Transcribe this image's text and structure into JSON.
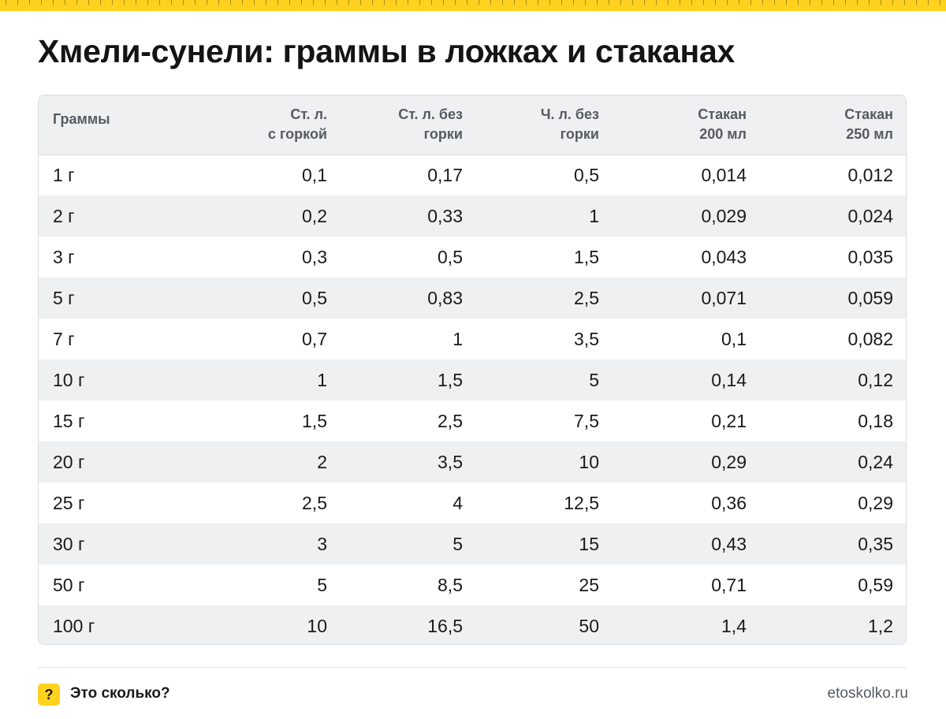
{
  "page": {
    "title": "Хмели-сунели: граммы в ложках и стаканах"
  },
  "table": {
    "headers": [
      [
        "Граммы"
      ],
      [
        "Ст. л.",
        "с горкой"
      ],
      [
        "Ст. л. без",
        "горки"
      ],
      [
        "Ч. л. без",
        "горки"
      ],
      [
        "Стакан",
        "200 мл"
      ],
      [
        "Стакан",
        "250 мл"
      ]
    ],
    "rows": [
      [
        "1 г",
        "0,1",
        "0,17",
        "0,5",
        "0,014",
        "0,012"
      ],
      [
        "2 г",
        "0,2",
        "0,33",
        "1",
        "0,029",
        "0,024"
      ],
      [
        "3 г",
        "0,3",
        "0,5",
        "1,5",
        "0,043",
        "0,035"
      ],
      [
        "5 г",
        "0,5",
        "0,83",
        "2,5",
        "0,071",
        "0,059"
      ],
      [
        "7 г",
        "0,7",
        "1",
        "3,5",
        "0,1",
        "0,082"
      ],
      [
        "10 г",
        "1",
        "1,5",
        "5",
        "0,14",
        "0,12"
      ],
      [
        "15 г",
        "1,5",
        "2,5",
        "7,5",
        "0,21",
        "0,18"
      ],
      [
        "20 г",
        "2",
        "3,5",
        "10",
        "0,29",
        "0,24"
      ],
      [
        "25 г",
        "2,5",
        "4",
        "12,5",
        "0,36",
        "0,29"
      ],
      [
        "30 г",
        "3",
        "5",
        "15",
        "0,43",
        "0,35"
      ],
      [
        "50 г",
        "5",
        "8,5",
        "25",
        "0,71",
        "0,59"
      ],
      [
        "100 г",
        "10",
        "16,5",
        "50",
        "1,4",
        "1,2"
      ]
    ]
  },
  "footer": {
    "badge_glyph": "?",
    "brand": "Это сколько?",
    "site": "etoskolko.ru"
  },
  "colors": {
    "accent_yellow": "#ffd21f",
    "header_gray": "#eef0f2",
    "border": "#d9dde2"
  }
}
